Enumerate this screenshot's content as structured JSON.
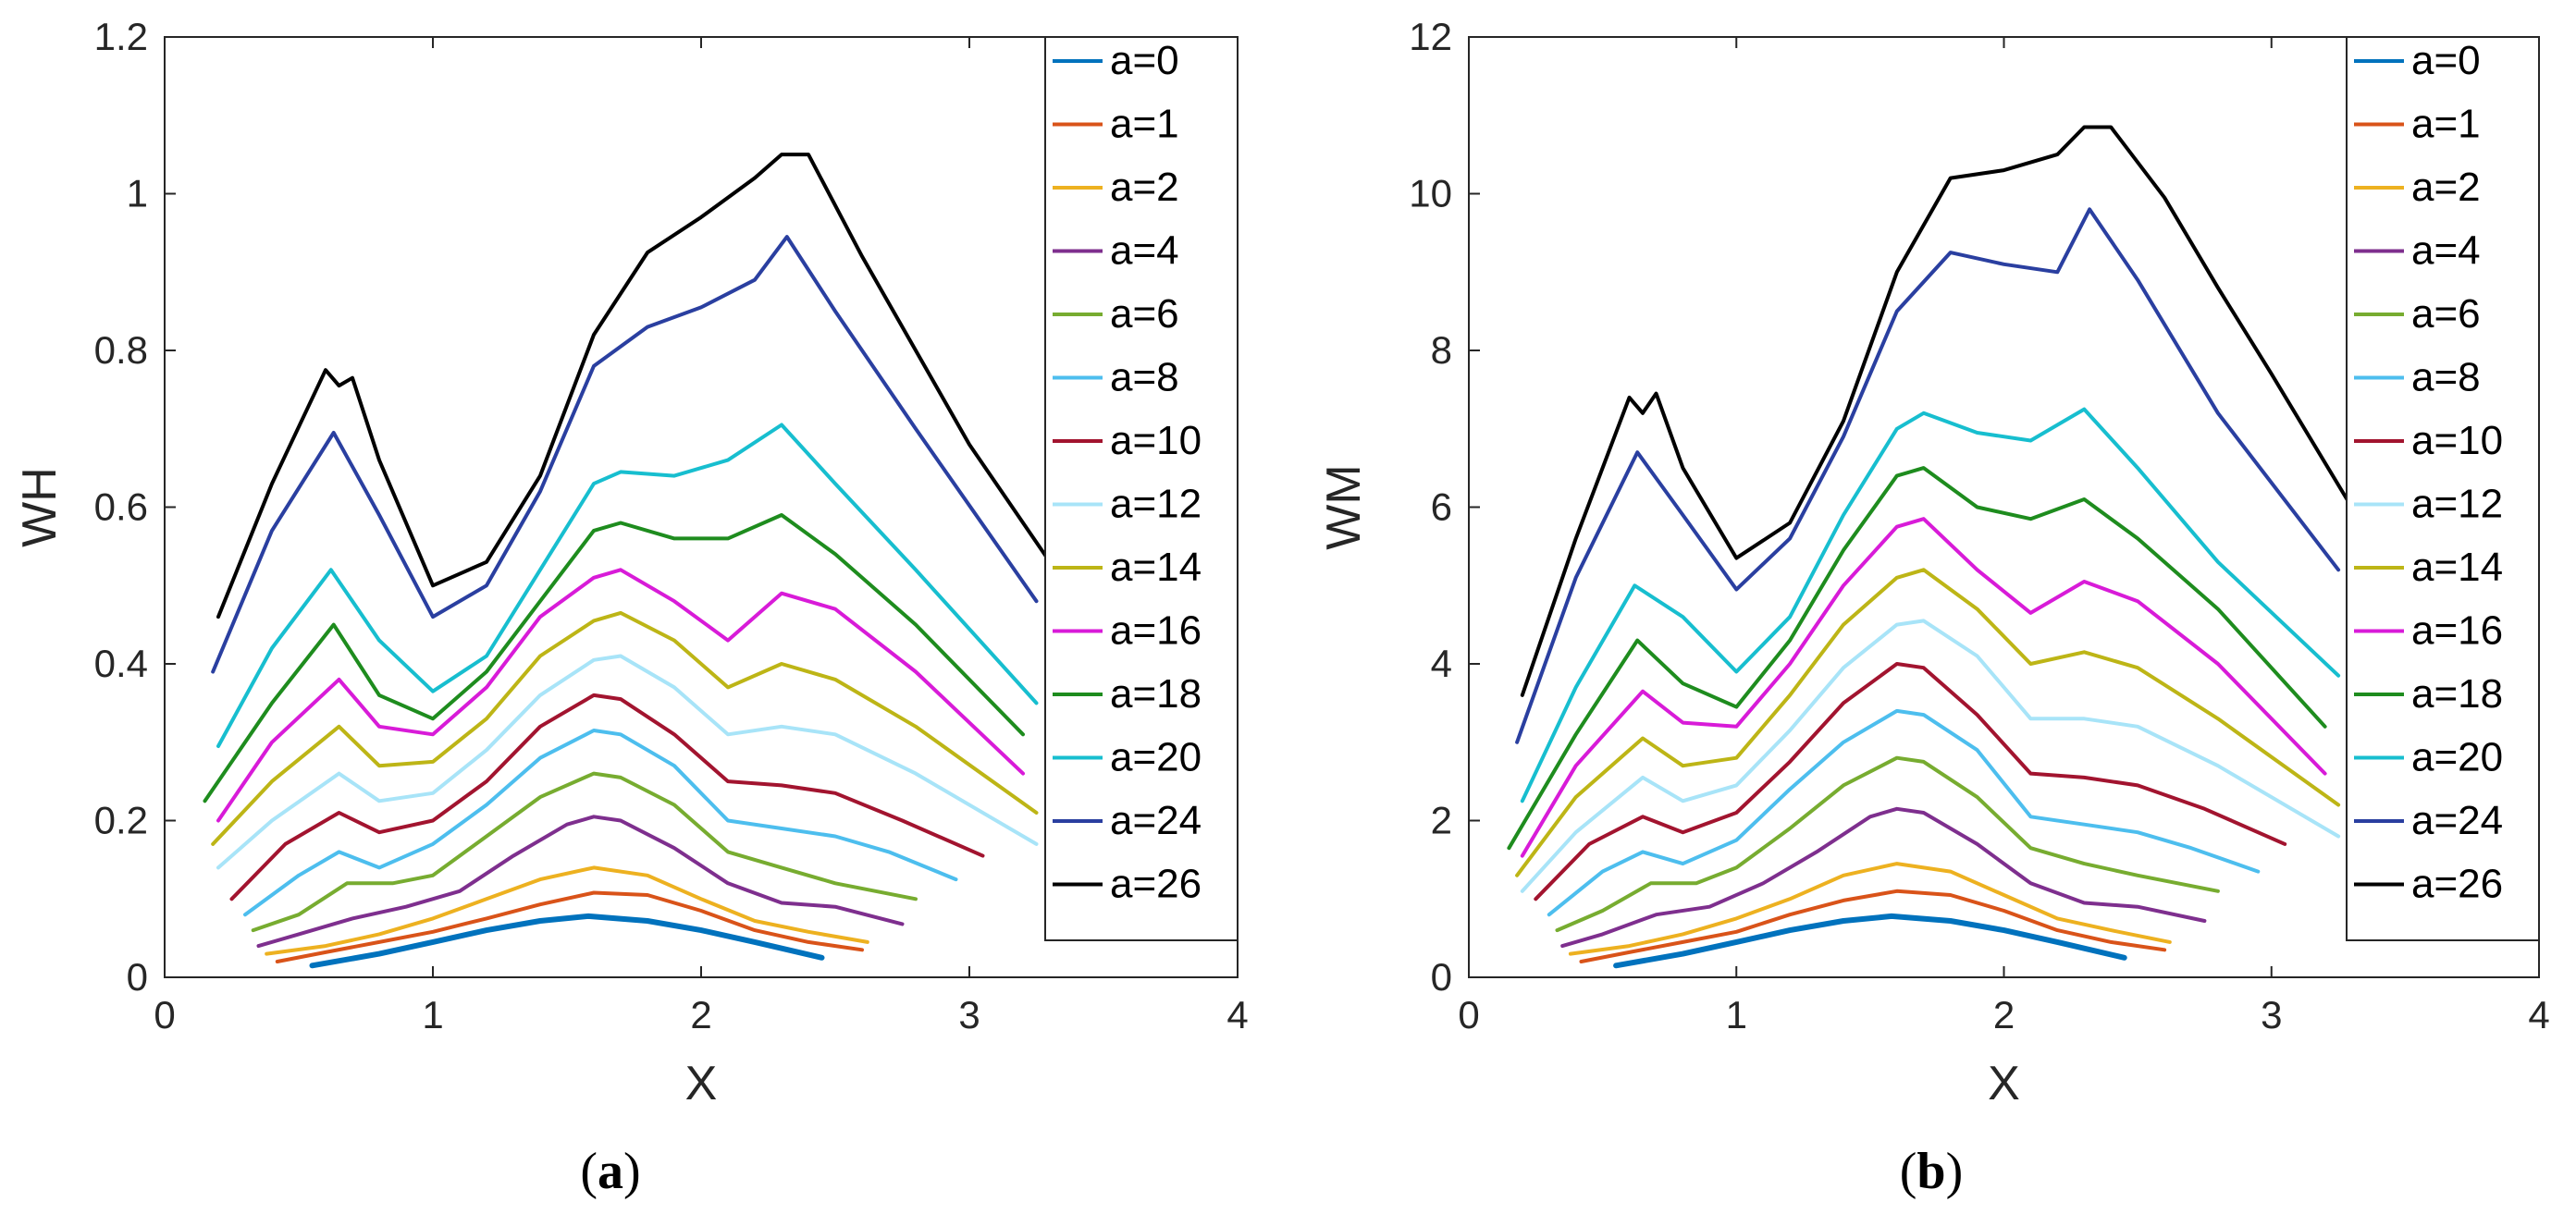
{
  "chart_data": [
    {
      "type": "line",
      "caption_letter": "a",
      "xlabel": "X",
      "ylabel": "WH",
      "xlim": [
        0,
        4
      ],
      "ylim": [
        0,
        1.2
      ],
      "xticks": [
        "0",
        "1",
        "2",
        "3",
        "4"
      ],
      "yticks": [
        "0",
        "0.2",
        "0.4",
        "0.6",
        "0.8",
        "1",
        "1.2"
      ],
      "legend_position": "top-right",
      "series": [
        {
          "name": "a=0",
          "color": "#0072BD",
          "x": [
            0.55,
            0.8,
            1.0,
            1.2,
            1.4,
            1.58,
            1.8,
            2.0,
            2.2,
            2.45
          ],
          "y": [
            0.015,
            0.03,
            0.045,
            0.06,
            0.072,
            0.078,
            0.072,
            0.06,
            0.045,
            0.025
          ]
        },
        {
          "name": "a=1",
          "color": "#D95319",
          "x": [
            0.42,
            0.6,
            0.8,
            1.0,
            1.2,
            1.4,
            1.6,
            1.8,
            2.0,
            2.2,
            2.4,
            2.6
          ],
          "y": [
            0.02,
            0.032,
            0.045,
            0.058,
            0.075,
            0.093,
            0.108,
            0.105,
            0.085,
            0.06,
            0.045,
            0.035
          ]
        },
        {
          "name": "a=2",
          "color": "#EDB120",
          "x": [
            0.38,
            0.6,
            0.8,
            1.0,
            1.2,
            1.4,
            1.6,
            1.8,
            2.0,
            2.2,
            2.4,
            2.62
          ],
          "y": [
            0.03,
            0.04,
            0.055,
            0.075,
            0.1,
            0.125,
            0.14,
            0.13,
            0.1,
            0.072,
            0.058,
            0.045
          ]
        },
        {
          "name": "a=4",
          "color": "#7E2F8E",
          "x": [
            0.35,
            0.5,
            0.7,
            0.9,
            1.1,
            1.3,
            1.5,
            1.6,
            1.7,
            1.9,
            2.1,
            2.3,
            2.5,
            2.75
          ],
          "y": [
            0.04,
            0.055,
            0.075,
            0.09,
            0.11,
            0.155,
            0.195,
            0.205,
            0.2,
            0.165,
            0.12,
            0.095,
            0.09,
            0.068
          ]
        },
        {
          "name": "a=6",
          "color": "#77AC30",
          "x": [
            0.33,
            0.5,
            0.68,
            0.85,
            1.0,
            1.2,
            1.4,
            1.6,
            1.7,
            1.9,
            2.1,
            2.3,
            2.5,
            2.8
          ],
          "y": [
            0.06,
            0.08,
            0.12,
            0.12,
            0.13,
            0.18,
            0.23,
            0.26,
            0.255,
            0.22,
            0.16,
            0.14,
            0.12,
            0.1
          ]
        },
        {
          "name": "a=8",
          "color": "#4DBEEE",
          "x": [
            0.3,
            0.5,
            0.65,
            0.8,
            1.0,
            1.2,
            1.4,
            1.6,
            1.7,
            1.9,
            2.1,
            2.3,
            2.5,
            2.7,
            2.95
          ],
          "y": [
            0.08,
            0.13,
            0.16,
            0.14,
            0.17,
            0.22,
            0.28,
            0.315,
            0.31,
            0.27,
            0.2,
            0.19,
            0.18,
            0.16,
            0.125
          ]
        },
        {
          "name": "a=10",
          "color": "#A2142F",
          "x": [
            0.25,
            0.45,
            0.65,
            0.8,
            1.0,
            1.2,
            1.4,
            1.6,
            1.7,
            1.9,
            2.1,
            2.3,
            2.5,
            2.75,
            3.05
          ],
          "y": [
            0.1,
            0.17,
            0.21,
            0.185,
            0.2,
            0.25,
            0.32,
            0.36,
            0.355,
            0.31,
            0.25,
            0.245,
            0.235,
            0.2,
            0.155
          ]
        },
        {
          "name": "a=12",
          "color": "#A8E4F8",
          "x": [
            0.2,
            0.4,
            0.65,
            0.8,
            1.0,
            1.2,
            1.4,
            1.6,
            1.7,
            1.9,
            2.1,
            2.3,
            2.5,
            2.8,
            3.25
          ],
          "y": [
            0.14,
            0.2,
            0.26,
            0.225,
            0.235,
            0.29,
            0.36,
            0.405,
            0.41,
            0.37,
            0.31,
            0.32,
            0.31,
            0.26,
            0.17
          ]
        },
        {
          "name": "a=14",
          "color": "#BDB516",
          "x": [
            0.18,
            0.4,
            0.65,
            0.8,
            1.0,
            1.2,
            1.4,
            1.6,
            1.7,
            1.9,
            2.1,
            2.3,
            2.5,
            2.8,
            3.25
          ],
          "y": [
            0.17,
            0.25,
            0.32,
            0.27,
            0.275,
            0.33,
            0.41,
            0.455,
            0.465,
            0.43,
            0.37,
            0.4,
            0.38,
            0.32,
            0.21
          ]
        },
        {
          "name": "a=16",
          "color": "#D81BD8",
          "x": [
            0.2,
            0.4,
            0.65,
            0.8,
            1.0,
            1.2,
            1.4,
            1.6,
            1.7,
            1.9,
            2.1,
            2.3,
            2.5,
            2.8,
            3.2
          ],
          "y": [
            0.2,
            0.3,
            0.38,
            0.32,
            0.31,
            0.37,
            0.46,
            0.51,
            0.52,
            0.48,
            0.43,
            0.49,
            0.47,
            0.39,
            0.26
          ]
        },
        {
          "name": "a=18",
          "color": "#1E8C1E",
          "x": [
            0.15,
            0.4,
            0.63,
            0.8,
            1.0,
            1.2,
            1.4,
            1.6,
            1.7,
            1.9,
            2.1,
            2.3,
            2.5,
            2.8,
            3.2
          ],
          "y": [
            0.225,
            0.35,
            0.45,
            0.36,
            0.33,
            0.39,
            0.48,
            0.57,
            0.58,
            0.56,
            0.56,
            0.59,
            0.54,
            0.45,
            0.31
          ]
        },
        {
          "name": "a=20",
          "color": "#17BECF",
          "x": [
            0.2,
            0.4,
            0.62,
            0.8,
            1.0,
            1.2,
            1.4,
            1.6,
            1.7,
            1.9,
            2.1,
            2.3,
            2.5,
            2.8,
            3.25
          ],
          "y": [
            0.295,
            0.42,
            0.52,
            0.43,
            0.365,
            0.41,
            0.52,
            0.63,
            0.645,
            0.64,
            0.66,
            0.705,
            0.63,
            0.52,
            0.35
          ]
        },
        {
          "name": "a=24",
          "color": "#2A3FA0",
          "x": [
            0.18,
            0.4,
            0.63,
            0.8,
            1.0,
            1.2,
            1.4,
            1.6,
            1.8,
            2.0,
            2.2,
            2.32,
            2.5,
            2.8,
            3.25
          ],
          "y": [
            0.39,
            0.57,
            0.695,
            0.59,
            0.46,
            0.5,
            0.62,
            0.78,
            0.83,
            0.855,
            0.89,
            0.945,
            0.85,
            0.7,
            0.48
          ]
        },
        {
          "name": "a=26",
          "color": "#000000",
          "x": [
            0.2,
            0.4,
            0.6,
            0.65,
            0.7,
            0.8,
            1.0,
            1.2,
            1.4,
            1.6,
            1.8,
            2.0,
            2.2,
            2.3,
            2.4,
            2.6,
            2.8,
            3.0,
            3.3
          ],
          "y": [
            0.46,
            0.63,
            0.775,
            0.755,
            0.765,
            0.66,
            0.5,
            0.53,
            0.64,
            0.82,
            0.925,
            0.97,
            1.02,
            1.05,
            1.05,
            0.92,
            0.8,
            0.68,
            0.53
          ]
        }
      ]
    },
    {
      "type": "line",
      "caption_letter": "b",
      "xlabel": "X",
      "ylabel": "WM",
      "xlim": [
        0,
        4
      ],
      "ylim": [
        0,
        12
      ],
      "xticks": [
        "0",
        "1",
        "2",
        "3",
        "4"
      ],
      "yticks": [
        "0",
        "2",
        "4",
        "6",
        "8",
        "10",
        "12"
      ],
      "legend_position": "top-right",
      "series": [
        {
          "name": "a=0",
          "color": "#0072BD",
          "x": [
            0.55,
            0.8,
            1.0,
            1.2,
            1.4,
            1.58,
            1.8,
            2.0,
            2.2,
            2.45
          ],
          "y": [
            0.15,
            0.3,
            0.45,
            0.6,
            0.72,
            0.78,
            0.72,
            0.6,
            0.45,
            0.25
          ]
        },
        {
          "name": "a=1",
          "color": "#D95319",
          "x": [
            0.42,
            0.6,
            0.8,
            1.0,
            1.2,
            1.4,
            1.6,
            1.8,
            2.0,
            2.2,
            2.4,
            2.6
          ],
          "y": [
            0.2,
            0.32,
            0.45,
            0.58,
            0.8,
            0.98,
            1.1,
            1.05,
            0.85,
            0.6,
            0.45,
            0.35
          ]
        },
        {
          "name": "a=2",
          "color": "#EDB120",
          "x": [
            0.38,
            0.6,
            0.8,
            1.0,
            1.2,
            1.4,
            1.6,
            1.8,
            2.0,
            2.2,
            2.4,
            2.62
          ],
          "y": [
            0.3,
            0.4,
            0.55,
            0.75,
            1.0,
            1.3,
            1.45,
            1.35,
            1.05,
            0.75,
            0.6,
            0.45
          ]
        },
        {
          "name": "a=4",
          "color": "#7E2F8E",
          "x": [
            0.35,
            0.5,
            0.7,
            0.9,
            1.1,
            1.3,
            1.5,
            1.6,
            1.7,
            1.9,
            2.1,
            2.3,
            2.5,
            2.75
          ],
          "y": [
            0.4,
            0.55,
            0.8,
            0.9,
            1.2,
            1.6,
            2.05,
            2.15,
            2.1,
            1.7,
            1.2,
            0.95,
            0.9,
            0.72
          ]
        },
        {
          "name": "a=6",
          "color": "#77AC30",
          "x": [
            0.33,
            0.5,
            0.68,
            0.85,
            1.0,
            1.2,
            1.4,
            1.6,
            1.7,
            1.9,
            2.1,
            2.3,
            2.5,
            2.8
          ],
          "y": [
            0.6,
            0.85,
            1.2,
            1.2,
            1.4,
            1.9,
            2.45,
            2.8,
            2.75,
            2.3,
            1.65,
            1.45,
            1.3,
            1.1
          ]
        },
        {
          "name": "a=8",
          "color": "#4DBEEE",
          "x": [
            0.3,
            0.5,
            0.65,
            0.8,
            1.0,
            1.2,
            1.4,
            1.6,
            1.7,
            1.9,
            2.1,
            2.3,
            2.5,
            2.7,
            2.95
          ],
          "y": [
            0.8,
            1.35,
            1.6,
            1.45,
            1.75,
            2.4,
            3.0,
            3.4,
            3.35,
            2.9,
            2.05,
            1.95,
            1.85,
            1.65,
            1.35
          ]
        },
        {
          "name": "a=10",
          "color": "#A2142F",
          "x": [
            0.25,
            0.45,
            0.65,
            0.8,
            1.0,
            1.2,
            1.4,
            1.6,
            1.7,
            1.9,
            2.1,
            2.3,
            2.5,
            2.75,
            3.05
          ],
          "y": [
            1.0,
            1.7,
            2.05,
            1.85,
            2.1,
            2.75,
            3.5,
            4.0,
            3.95,
            3.35,
            2.6,
            2.55,
            2.45,
            2.15,
            1.7
          ]
        },
        {
          "name": "a=12",
          "color": "#A8E4F8",
          "x": [
            0.2,
            0.4,
            0.65,
            0.8,
            1.0,
            1.2,
            1.4,
            1.6,
            1.7,
            1.9,
            2.1,
            2.3,
            2.5,
            2.8,
            3.25
          ],
          "y": [
            1.1,
            1.85,
            2.55,
            2.25,
            2.45,
            3.15,
            3.95,
            4.5,
            4.55,
            4.1,
            3.3,
            3.3,
            3.2,
            2.7,
            1.8
          ]
        },
        {
          "name": "a=14",
          "color": "#BDB516",
          "x": [
            0.18,
            0.4,
            0.65,
            0.8,
            1.0,
            1.2,
            1.4,
            1.6,
            1.7,
            1.9,
            2.1,
            2.3,
            2.5,
            2.8,
            3.25
          ],
          "y": [
            1.3,
            2.3,
            3.05,
            2.7,
            2.8,
            3.6,
            4.5,
            5.1,
            5.2,
            4.7,
            4.0,
            4.15,
            3.95,
            3.3,
            2.2
          ]
        },
        {
          "name": "a=16",
          "color": "#D81BD8",
          "x": [
            0.2,
            0.4,
            0.65,
            0.8,
            1.0,
            1.2,
            1.4,
            1.6,
            1.7,
            1.9,
            2.1,
            2.3,
            2.5,
            2.8,
            3.2
          ],
          "y": [
            1.55,
            2.7,
            3.65,
            3.25,
            3.2,
            4.0,
            5.0,
            5.75,
            5.85,
            5.2,
            4.65,
            5.05,
            4.8,
            4.0,
            2.6
          ]
        },
        {
          "name": "a=18",
          "color": "#1E8C1E",
          "x": [
            0.15,
            0.4,
            0.63,
            0.8,
            1.0,
            1.2,
            1.4,
            1.6,
            1.7,
            1.9,
            2.1,
            2.3,
            2.5,
            2.8,
            3.2
          ],
          "y": [
            1.65,
            3.1,
            4.3,
            3.75,
            3.45,
            4.3,
            5.45,
            6.4,
            6.5,
            6.0,
            5.85,
            6.1,
            5.6,
            4.7,
            3.2
          ]
        },
        {
          "name": "a=20",
          "color": "#17BECF",
          "x": [
            0.2,
            0.4,
            0.62,
            0.8,
            1.0,
            1.2,
            1.4,
            1.6,
            1.7,
            1.9,
            2.1,
            2.3,
            2.5,
            2.8,
            3.25
          ],
          "y": [
            2.25,
            3.7,
            5.0,
            4.6,
            3.9,
            4.6,
            5.9,
            7.0,
            7.2,
            6.95,
            6.85,
            7.25,
            6.5,
            5.3,
            3.85
          ]
        },
        {
          "name": "a=24",
          "color": "#2A3FA0",
          "x": [
            0.18,
            0.4,
            0.63,
            0.8,
            1.0,
            1.2,
            1.4,
            1.6,
            1.8,
            2.0,
            2.2,
            2.32,
            2.5,
            2.8,
            3.25
          ],
          "y": [
            3.0,
            5.1,
            6.7,
            5.9,
            4.95,
            5.6,
            6.9,
            8.5,
            9.25,
            9.1,
            9.0,
            9.8,
            8.9,
            7.2,
            5.2
          ]
        },
        {
          "name": "a=26",
          "color": "#000000",
          "x": [
            0.2,
            0.4,
            0.6,
            0.65,
            0.7,
            0.8,
            1.0,
            1.2,
            1.4,
            1.6,
            1.8,
            2.0,
            2.2,
            2.3,
            2.4,
            2.6,
            2.8,
            3.0,
            3.3
          ],
          "y": [
            3.6,
            5.6,
            7.4,
            7.2,
            7.45,
            6.5,
            5.35,
            5.8,
            7.1,
            9.0,
            10.2,
            10.3,
            10.5,
            10.85,
            10.85,
            9.95,
            8.8,
            7.7,
            6.0
          ]
        }
      ]
    }
  ]
}
